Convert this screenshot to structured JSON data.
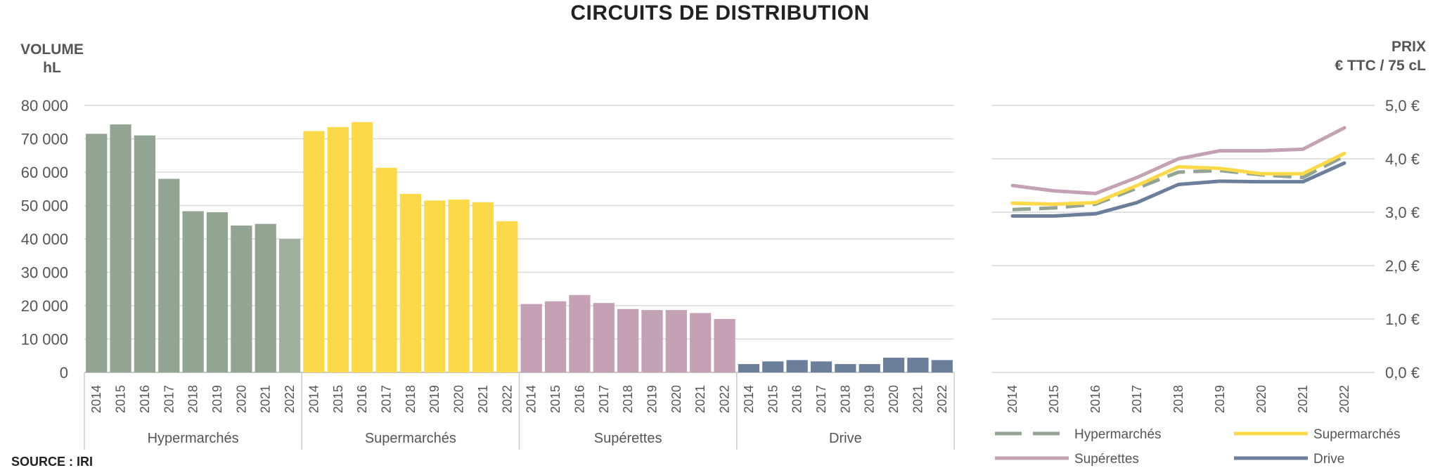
{
  "title": "CIRCUITS DE DISTRIBUTION",
  "left_axis_title": [
    "VOLUME",
    "hL"
  ],
  "right_axis_title": [
    "PRIX",
    "€ TTC / 75 cL"
  ],
  "source": "SOURCE : IRI",
  "colors": {
    "Hypermarchés": "#92a592",
    "Supermarchés": "#fcd949",
    "Supérettes": "#c4a1b4",
    "Drive": "#6b7f9b",
    "Hypermarchés_last": "#9fb09f",
    "grid": "#d9d9d9"
  },
  "chart_data": [
    {
      "type": "bar",
      "ylabel": "VOLUME hL",
      "ylim": [
        0,
        80000
      ],
      "yticks": [
        "0",
        "10 000",
        "20 000",
        "30 000",
        "40 000",
        "50 000",
        "60 000",
        "70 000",
        "80 000"
      ],
      "categories": [
        "2014",
        "2015",
        "2016",
        "2017",
        "2018",
        "2019",
        "2020",
        "2021",
        "2022"
      ],
      "groups": [
        {
          "name": "Hypermarchés",
          "values": [
            71500,
            74300,
            71000,
            58000,
            48300,
            48000,
            44000,
            44500,
            40000
          ]
        },
        {
          "name": "Supermarchés",
          "values": [
            72300,
            73500,
            75000,
            61300,
            53500,
            51500,
            51800,
            51000,
            45300
          ]
        },
        {
          "name": "Supérettes",
          "values": [
            20500,
            21300,
            23200,
            20800,
            19000,
            18700,
            18700,
            17800,
            16000
          ]
        },
        {
          "name": "Drive",
          "values": [
            2500,
            3300,
            3700,
            3300,
            2500,
            2500,
            4400,
            4400,
            3700
          ]
        }
      ],
      "grid": true
    },
    {
      "type": "line",
      "ylabel": "PRIX € TTC / 75 cL",
      "ylim": [
        0,
        5
      ],
      "yticks": [
        "0,0 €",
        "1,0 €",
        "2,0 €",
        "3,0 €",
        "4,0 €",
        "5,0 €"
      ],
      "x": [
        "2014",
        "2015",
        "2016",
        "2017",
        "2018",
        "2019",
        "2020",
        "2021",
        "2022"
      ],
      "series": [
        {
          "name": "Hypermarchés",
          "style": "dashed",
          "values": [
            3.05,
            3.08,
            3.15,
            3.45,
            3.75,
            3.78,
            3.7,
            3.65,
            4.05
          ]
        },
        {
          "name": "Supermarchés",
          "style": "solid",
          "values": [
            3.17,
            3.15,
            3.18,
            3.5,
            3.85,
            3.82,
            3.72,
            3.72,
            4.1
          ]
        },
        {
          "name": "Supérettes",
          "style": "solid",
          "values": [
            3.5,
            3.4,
            3.35,
            3.65,
            4.0,
            4.15,
            4.15,
            4.18,
            4.58
          ]
        },
        {
          "name": "Drive",
          "style": "solid",
          "values": [
            2.93,
            2.93,
            2.97,
            3.18,
            3.52,
            3.58,
            3.57,
            3.57,
            3.92
          ]
        }
      ],
      "legend": [
        "Hypermarchés",
        "Supermarchés",
        "Supérettes",
        "Drive"
      ],
      "legend_position": "bottom",
      "grid": true
    }
  ]
}
